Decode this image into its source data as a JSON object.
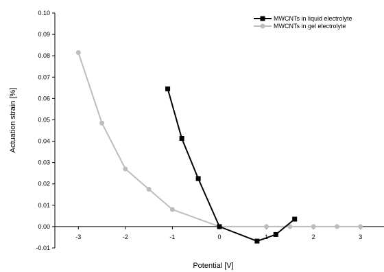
{
  "chart_data": {
    "type": "line",
    "xlabel": "Potential [V]",
    "ylabel": "Actuation strain [%]",
    "xlim": [
      -3.5,
      3.5
    ],
    "ylim": [
      -0.01,
      0.1
    ],
    "x_ticks": [
      -3,
      -2,
      -1,
      0,
      1,
      2,
      3
    ],
    "x_tick_labels": [
      "-3",
      "-2",
      "-1",
      "0",
      "1",
      "2",
      "3"
    ],
    "y_ticks": [
      -0.01,
      0.0,
      0.01,
      0.02,
      0.03,
      0.04,
      0.05,
      0.06,
      0.07,
      0.08,
      0.09,
      0.1
    ],
    "y_tick_labels": [
      "-0.01",
      "0.00",
      "0.01",
      "0.02",
      "0.03",
      "0.04",
      "0.05",
      "0.06",
      "0.07",
      "0.08",
      "0.09",
      "0.10"
    ],
    "grid": false,
    "legend_position": "top-right",
    "series": [
      {
        "name": "MWCNTs in liquid electrolyte",
        "color": "#000000",
        "marker": "square",
        "x": [
          -1.1,
          -0.8,
          -0.45,
          0.0,
          0.8,
          1.2,
          1.6
        ],
        "y": [
          0.0645,
          0.0413,
          0.0225,
          0.0,
          -0.0068,
          -0.0037,
          0.0035
        ]
      },
      {
        "name": "MWCNTs in gel electrolyte",
        "color": "#bdbdbd",
        "marker": "circle",
        "x": [
          -3.0,
          -2.5,
          -2.0,
          -1.5,
          -1.0,
          0.0,
          1.0,
          1.5,
          2.0,
          2.5,
          3.0
        ],
        "y": [
          0.0815,
          0.0485,
          0.027,
          0.0175,
          0.008,
          0.0,
          0.0,
          0.0,
          0.0,
          0.0,
          0.0
        ]
      }
    ]
  }
}
